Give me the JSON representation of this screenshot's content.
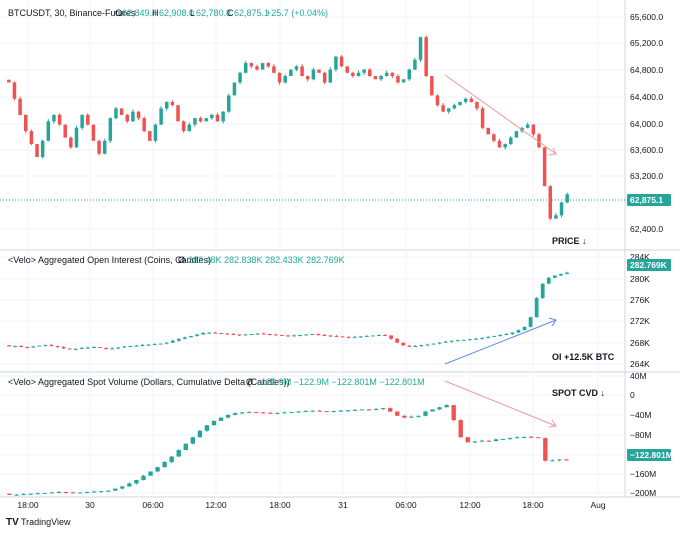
{
  "colors": {
    "up": "#26a69a",
    "down": "#ef5350",
    "grid": "#f0f3fa",
    "border": "#d1d4dc",
    "tag_price": "#26a69a",
    "tag_cvd": "#26a69a",
    "arrow_red": "#ef9a9a",
    "arrow_blue": "#5b8def"
  },
  "header": {
    "symbol": "BTCUSDT, 30, Binance-Futures",
    "o_label": "O",
    "o": "62,849.4",
    "h_label": "H",
    "h": "62,908.0",
    "l_label": "L",
    "l": "62,780.8",
    "c_label": "C",
    "c": "62,875.1",
    "chg": "+25.7 (+0.04%)"
  },
  "oi_header": {
    "name": "<Velo> Aggregated Open Interest (Coins, Candles)",
    "sym": "Ø",
    "values": "282.48K  282.838K  282.433K  282.769K"
  },
  "cvd_header": {
    "name": "<Velo> Aggregated Spot Volume (Dollars, Cumulative Delta (Candles))",
    "sym": "Ø",
    "values": "−122.9M  −122.9M  −122.801M  −122.801M"
  },
  "annotations": {
    "price": "PRICE ↓",
    "oi": "OI +12.5K BTC",
    "cvd": "SPOT CVD ↓"
  },
  "footer": {
    "brand": "TradingView"
  },
  "chart_data": [
    {
      "type": "candlestick",
      "title": "BTCUSDT, 30, Binance-Futures",
      "y_ticks": [
        "65,600.0",
        "65,200.0",
        "64,800.0",
        "64,400.0",
        "64,000.0",
        "63,600.0",
        "63,200.0",
        "62,400.0"
      ],
      "ylim": [
        62200,
        65750
      ],
      "last_value": "62,875.1",
      "x_ticks": [
        "18:00",
        "30",
        "06:00",
        "12:00",
        "18:00",
        "31",
        "06:00",
        "12:00",
        "18:00",
        "Aug"
      ],
      "close_path": [
        64600,
        64350,
        64100,
        63850,
        63650,
        63450,
        63700,
        64000,
        64100,
        63950,
        63750,
        63600,
        63900,
        64100,
        63950,
        63700,
        63500,
        63700,
        64050,
        64200,
        64100,
        64000,
        64150,
        64050,
        63850,
        63700,
        63950,
        64200,
        64300,
        64250,
        64000,
        63850,
        63950,
        64050,
        64000,
        64050,
        64100,
        64000,
        64150,
        64400,
        64600,
        64750,
        64900,
        64850,
        64800,
        64900,
        64850,
        64750,
        64600,
        64700,
        64800,
        64850,
        64700,
        64650,
        64800,
        64750,
        64600,
        64800,
        65000,
        64850,
        64750,
        64700,
        64750,
        64800,
        64700,
        64650,
        64700,
        64750,
        64700,
        64600,
        64650,
        64800,
        64950,
        65300,
        64700,
        64400,
        64250,
        64150,
        64200,
        64250,
        64300,
        64350,
        64300,
        64200,
        63900,
        63800,
        63700,
        63600,
        63650,
        63750,
        63850,
        63900,
        63950,
        63800,
        63600,
        63000,
        62500,
        62550,
        62750,
        62875
      ]
    },
    {
      "type": "candlestick",
      "title": "<Velo> Aggregated Open Interest (Coins, Candles)",
      "y_ticks": [
        "284K",
        "280K",
        "276K",
        "272K",
        "268K",
        "264K"
      ],
      "ylim": [
        262500,
        285000
      ],
      "last_value": "282.769K",
      "close_path": [
        267400,
        267500,
        267300,
        267200,
        267400,
        267600,
        267700,
        267500,
        267300,
        267000,
        266800,
        266900,
        267100,
        267200,
        267300,
        267100,
        266900,
        267000,
        267200,
        267400,
        267500,
        267600,
        267700,
        267800,
        267900,
        268000,
        268200,
        268600,
        269000,
        269300,
        269600,
        269900,
        270200,
        270300,
        270200,
        270100,
        270000,
        269900,
        269800,
        269900,
        270000,
        270100,
        270000,
        269900,
        269800,
        269700,
        269600,
        269700,
        269800,
        269900,
        270000,
        269800,
        269700,
        269600,
        269500,
        269400,
        269300,
        269400,
        269500,
        269600,
        269700,
        269800,
        269700,
        269000,
        268200,
        267600,
        267400,
        267500,
        267700,
        267800,
        268000,
        268200,
        268400,
        268600,
        268700,
        268800,
        268900,
        269000,
        269200,
        269400,
        269600,
        269800,
        270000,
        270300,
        270800,
        271500,
        273500,
        277500,
        280500,
        281700,
        282200,
        282500,
        282769
      ]
    },
    {
      "type": "candlestick",
      "title": "<Velo> Aggregated Spot Volume (Dollars, Cumulative Delta (Candles))",
      "y_ticks": [
        "40M",
        "0",
        "−40M",
        "−80M",
        "−120M",
        "−160M",
        "−200M"
      ],
      "ylim": [
        -205000000,
        45000000
      ],
      "last_value": "−122.801M",
      "close_path": [
        -205000000,
        -204000000,
        -203000000,
        -202000000,
        -201000000,
        -200000000,
        -199000000,
        -198000000,
        -199000000,
        -200000000,
        -199000000,
        -198000000,
        -197000000,
        -196000000,
        -195000000,
        -190000000,
        -185000000,
        -178000000,
        -170000000,
        -160000000,
        -150000000,
        -140000000,
        -128000000,
        -115000000,
        -100000000,
        -85000000,
        -70000000,
        -55000000,
        -42000000,
        -32000000,
        -24000000,
        -18000000,
        -14000000,
        -12000000,
        -11000000,
        -12000000,
        -13000000,
        -14000000,
        -13000000,
        -12000000,
        -11000000,
        -10000000,
        -9000000,
        -8000000,
        -9000000,
        -10000000,
        -9000000,
        -8000000,
        -7000000,
        -6000000,
        -5000000,
        -6000000,
        -4000000,
        -2000000,
        -10000000,
        -20000000,
        -24000000,
        -22000000,
        -20000000,
        -10000000,
        -5000000,
        0,
        5000000,
        -30000000,
        -70000000,
        -82000000,
        -80000000,
        -78000000,
        -79000000,
        -75000000,
        -74000000,
        -72000000,
        -70000000,
        -69000000,
        -70000000,
        -72000000,
        -125000000,
        -124000000,
        -122000000,
        -122801000
      ]
    }
  ]
}
